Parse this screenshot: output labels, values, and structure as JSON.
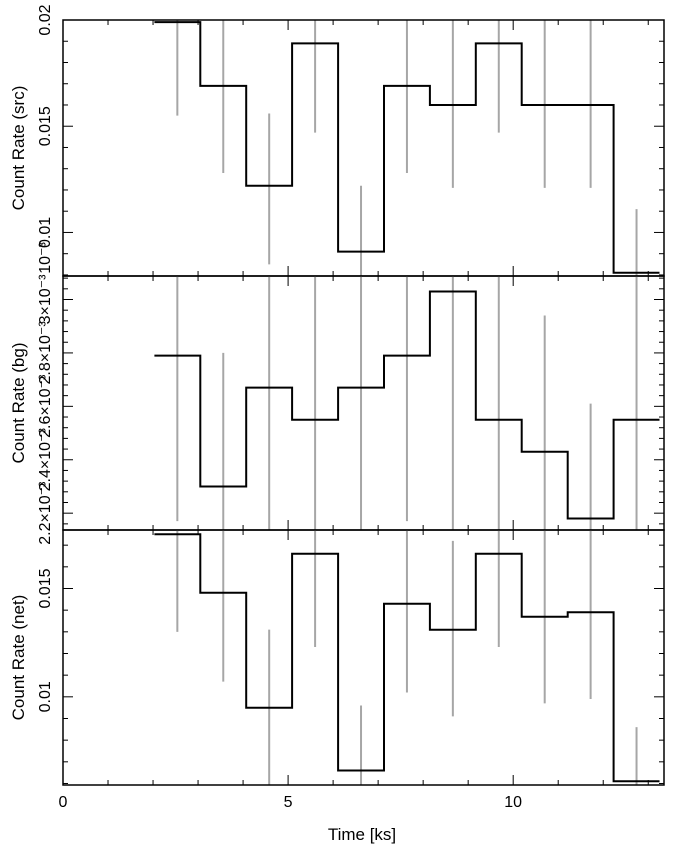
{
  "chart_data": {
    "type": "line",
    "xlabel": "Time [ks]",
    "xlim": [
      0,
      13.35
    ],
    "xticks": [
      0,
      5,
      10
    ],
    "xticklabels": [
      "0",
      "5",
      "10"
    ],
    "bins": [
      [
        2.03,
        3.05
      ],
      [
        3.05,
        4.07
      ],
      [
        4.07,
        5.09
      ],
      [
        5.09,
        6.11
      ],
      [
        6.11,
        7.13
      ],
      [
        7.13,
        8.15
      ],
      [
        8.15,
        9.17
      ],
      [
        9.17,
        10.19
      ],
      [
        10.19,
        11.21
      ],
      [
        11.21,
        12.23
      ],
      [
        12.23,
        13.25
      ]
    ],
    "errorbar_x": [
      2.54,
      3.56,
      4.58,
      5.6,
      6.62,
      7.64,
      8.66,
      9.68,
      10.7,
      11.72,
      12.74
    ],
    "panels": [
      {
        "ylabel": "Count Rate (src)",
        "ylim": [
          0.00795,
          0.02
        ],
        "yticks": [
          0.01,
          0.015,
          0.02
        ],
        "yticklabels": [
          "0.01",
          "0.015",
          "0.02"
        ],
        "extra_label": "10⁻³",
        "values": [
          0.0199,
          0.0169,
          0.0122,
          0.0189,
          0.0091,
          0.0169,
          0.016,
          0.0189,
          0.016,
          0.016,
          0.0081
        ],
        "err_low": [
          0.0155,
          0.0128,
          0.0085,
          0.0147,
          0.0054,
          0.0128,
          0.0121,
          0.0147,
          0.0121,
          0.0121,
          0.0052
        ],
        "err_high": [
          0.02,
          0.02,
          0.0156,
          0.02,
          0.0122,
          0.02,
          0.02,
          0.02,
          0.02,
          0.02,
          0.0111
        ]
      },
      {
        "ylabel": "Count Rate (bg)",
        "ylim": [
          0.002137,
          0.003088
        ],
        "yticks": [
          0.0022,
          0.0024,
          0.0026,
          0.0028,
          0.003
        ],
        "yticklabels": [
          "2.2×10⁻³",
          "2.4×10⁻³",
          "2.6×10⁻³",
          "2.8×10⁻³",
          "3×10⁻³"
        ],
        "values": [
          0.00279,
          0.0023,
          0.00267,
          0.00255,
          0.00267,
          0.00279,
          0.00303,
          0.00255,
          0.00243,
          0.00218,
          0.00255
        ],
        "err_low": [
          0.00217,
          0.0015,
          0.001,
          0.001,
          0.001,
          0.00217,
          0.001,
          0.001,
          0.001,
          0.001,
          0.001
        ],
        "err_high": [
          0.0031,
          0.0028,
          0.0031,
          0.0031,
          0.0031,
          0.0031,
          0.0031,
          0.0031,
          0.00294,
          0.00261,
          0.0031
        ]
      },
      {
        "ylabel": "Count Rate (net)",
        "ylim": [
          0.00593,
          0.0177
        ],
        "yticks": [
          0.01,
          0.015
        ],
        "yticklabels": [
          "0.01",
          "0.015"
        ],
        "values": [
          0.0175,
          0.0148,
          0.0095,
          0.0166,
          0.0066,
          0.0143,
          0.0131,
          0.0166,
          0.0137,
          0.0139,
          0.0061
        ],
        "err_low": [
          0.013,
          0.0107,
          0.0058,
          0.0123,
          0.002,
          0.0102,
          0.0091,
          0.0123,
          0.0097,
          0.0099,
          0.0033
        ],
        "err_high": [
          0.018,
          0.018,
          0.0131,
          0.018,
          0.0096,
          0.018,
          0.0172,
          0.018,
          0.018,
          0.018,
          0.0086
        ]
      }
    ]
  }
}
